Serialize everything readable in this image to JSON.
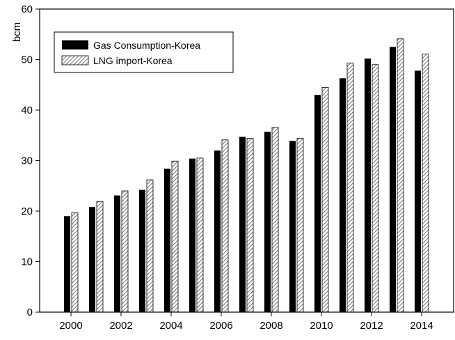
{
  "chart_data": {
    "type": "bar",
    "ylabel": "bcm",
    "xlabel": "",
    "title": "",
    "ylim": [
      0,
      60
    ],
    "y_ticks": [
      0,
      10,
      20,
      30,
      40,
      50,
      60
    ],
    "x_tick_labels": [
      "2000",
      "2002",
      "2004",
      "2006",
      "2008",
      "2010",
      "2012",
      "2014"
    ],
    "categories": [
      "2000",
      "2001",
      "2002",
      "2003",
      "2004",
      "2005",
      "2006",
      "2007",
      "2008",
      "2009",
      "2010",
      "2011",
      "2012",
      "2013",
      "2014"
    ],
    "series": [
      {
        "name": "Gas Consumption-Korea",
        "style": "solid",
        "color": "#000000",
        "values": [
          19.0,
          20.8,
          23.1,
          24.2,
          28.4,
          30.4,
          32.0,
          34.7,
          35.7,
          33.9,
          43.0,
          46.3,
          50.2,
          52.5,
          47.8
        ]
      },
      {
        "name": "LNG import-Korea",
        "style": "hatched",
        "color": "#808080",
        "values": [
          19.7,
          21.9,
          24.0,
          26.2,
          29.9,
          30.5,
          34.1,
          34.4,
          36.6,
          34.4,
          44.5,
          49.3,
          49.0,
          54.1,
          51.1
        ]
      }
    ],
    "legend_position": "top-left",
    "grid": false
  }
}
